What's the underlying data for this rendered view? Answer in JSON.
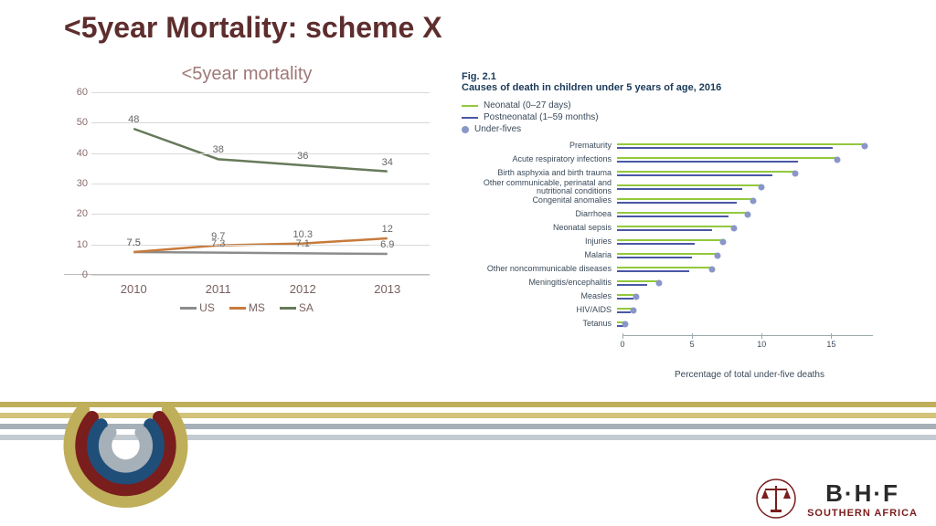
{
  "title": "<5year Mortality: scheme X",
  "line_chart": {
    "type": "line",
    "subtitle": "<5year mortality",
    "subtitle_color": "#a07878",
    "subtitle_fontsize": 20,
    "categories": [
      "2010",
      "2011",
      "2012",
      "2013"
    ],
    "ylim": [
      0,
      60
    ],
    "ytick_step": 10,
    "grid_color": "#d9d9d9",
    "axis_label_color": "#7a6060",
    "series": [
      {
        "name": "US",
        "color": "#8c8c8c",
        "values": [
          7.5,
          7.3,
          7.1,
          6.9
        ]
      },
      {
        "name": "MS",
        "color": "#c77b3c",
        "values": [
          7.5,
          9.7,
          10.3,
          12
        ]
      },
      {
        "name": "SA",
        "color": "#667a5a",
        "values": [
          48,
          38,
          36,
          34
        ]
      }
    ],
    "line_width": 2.5,
    "label_fontsize": 11
  },
  "right_fig": {
    "type": "lollipop",
    "fignum": "Fig. 2.1",
    "title": "Causes of death in children under 5 years of age, 2016",
    "legend": [
      {
        "kind": "line",
        "label": "Neonatal (0–27 days)",
        "color": "#93c83d"
      },
      {
        "kind": "line",
        "label": "Postneonatal (1–59 months)",
        "color": "#4a58a6"
      },
      {
        "kind": "dot",
        "label": "Under-fives",
        "color": "#8a96c8"
      }
    ],
    "xlim": [
      0,
      18
    ],
    "xticks": [
      0,
      5,
      10,
      15
    ],
    "xlabel": "Percentage of total under-five deaths",
    "neonatal_color": "#93c83d",
    "postneonatal_color": "#4a58a6",
    "underfive_color": "#8a96c8",
    "rows": [
      {
        "label": "Prematurity",
        "postneo": 15.5,
        "neo": 17.8,
        "u5": 17.8
      },
      {
        "label": "Acute respiratory infections",
        "postneo": 13.0,
        "neo": 15.8,
        "u5": 15.8
      },
      {
        "label": "Birth asphyxia and birth trauma",
        "postneo": 11.2,
        "neo": 12.8,
        "u5": 12.8
      },
      {
        "label": "Other communicable, perinatal and nutritional conditions",
        "postneo": 9.0,
        "neo": 10.4,
        "u5": 10.4
      },
      {
        "label": "Congenital anomalies",
        "postneo": 8.6,
        "neo": 9.8,
        "u5": 9.8
      },
      {
        "label": "Diarrhoea",
        "postneo": 8.0,
        "neo": 9.4,
        "u5": 9.4
      },
      {
        "label": "Neonatal sepsis",
        "postneo": 6.8,
        "neo": 8.4,
        "u5": 8.4
      },
      {
        "label": "Injuries",
        "postneo": 5.6,
        "neo": 7.6,
        "u5": 7.6
      },
      {
        "label": "Malaria",
        "postneo": 5.4,
        "neo": 7.2,
        "u5": 7.2
      },
      {
        "label": "Other noncommunicable diseases",
        "postneo": 5.2,
        "neo": 6.8,
        "u5": 6.8
      },
      {
        "label": "Meningitis/encephalitis",
        "postneo": 2.2,
        "neo": 3.0,
        "u5": 3.0
      },
      {
        "label": "Measles",
        "postneo": 1.2,
        "neo": 1.4,
        "u5": 1.4
      },
      {
        "label": "HIV/AIDS",
        "postneo": 1.0,
        "neo": 1.2,
        "u5": 1.2
      },
      {
        "label": "Tetanus",
        "postneo": 0.5,
        "neo": 0.6,
        "u5": 0.6
      }
    ],
    "label_fontsize": 9
  },
  "footer": {
    "stripe_colors": [
      "#bfae5a",
      "#d2c27a",
      "#a6b0b8",
      "#c3cbd1"
    ],
    "swirl_colors": [
      "#bfae5a",
      "#7a1d1d",
      "#1f4e79",
      "#a6b0b8"
    ],
    "bhf_main": "B·H·F",
    "bhf_sub": "SOUTHERN AFRICA",
    "bhf_main_color": "#2a2a2a",
    "bhf_sub_color": "#7a1d1d"
  }
}
